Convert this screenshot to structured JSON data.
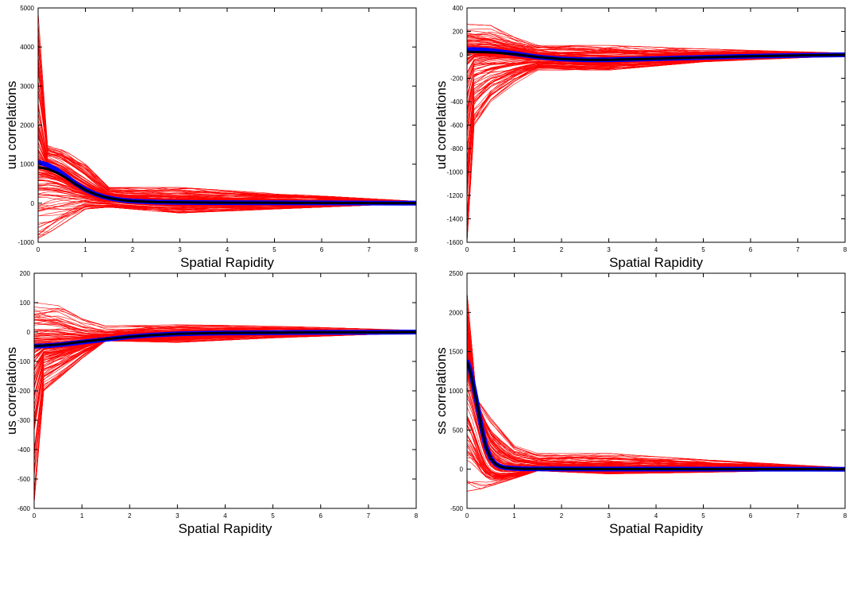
{
  "chart_data": [
    {
      "type": "line",
      "panel": "top-left",
      "xlabel": "Spatial Rapidity",
      "ylabel": "uu correlations",
      "xlim": [
        0,
        8
      ],
      "ylim": [
        -1000,
        5000
      ],
      "xticks": [
        "0",
        "1",
        "2",
        "3",
        "4",
        "5",
        "6",
        "7",
        "8"
      ],
      "yticks": [
        "-1000",
        "0",
        "1000",
        "2000",
        "3000",
        "4000",
        "5000"
      ],
      "grid": false,
      "series": [
        {
          "color": "#ff0000",
          "style": "ensemble of ~200 thin curves",
          "envelope_min": [
            [
              0,
              -900
            ],
            [
              0.3,
              -700
            ],
            [
              1.0,
              -150
            ],
            [
              1.5,
              -100
            ],
            [
              3.0,
              -250
            ],
            [
              5.0,
              -150
            ],
            [
              8.0,
              0
            ]
          ],
          "envelope_max": [
            [
              0,
              4900
            ],
            [
              0.2,
              1500
            ],
            [
              0.5,
              1400
            ],
            [
              1.0,
              1000
            ],
            [
              1.5,
              400
            ],
            [
              3.0,
              400
            ],
            [
              5.0,
              250
            ],
            [
              8.0,
              50
            ]
          ]
        },
        {
          "color": "#0000ff",
          "style": "thick band",
          "x": [
            0,
            0.2,
            0.4,
            0.6,
            0.8,
            1.0,
            1.2,
            1.4,
            1.6,
            1.8,
            2.0,
            2.5,
            3.0,
            4.0,
            5.0,
            6.0,
            7.0,
            8.0
          ],
          "y": [
            1050,
            980,
            850,
            680,
            500,
            350,
            240,
            160,
            110,
            75,
            55,
            30,
            20,
            15,
            10,
            8,
            5,
            0
          ]
        },
        {
          "color": "#000000",
          "style": "thick mean",
          "x": [
            0,
            0.2,
            0.4,
            0.6,
            0.8,
            1.0,
            1.2,
            1.4,
            1.6,
            1.8,
            2.0,
            2.5,
            3.0,
            4.0,
            5.0,
            6.0,
            7.0,
            8.0
          ],
          "y": [
            920,
            880,
            780,
            640,
            480,
            340,
            235,
            160,
            110,
            75,
            55,
            30,
            20,
            15,
            10,
            8,
            5,
            0
          ]
        }
      ]
    },
    {
      "type": "line",
      "panel": "top-right",
      "xlabel": "Spatial Rapidity",
      "ylabel": "ud correlations",
      "xlim": [
        0,
        8
      ],
      "ylim": [
        -1600,
        400
      ],
      "xticks": [
        "0",
        "1",
        "2",
        "3",
        "4",
        "5",
        "6",
        "7",
        "8"
      ],
      "yticks": [
        "-1600",
        "-1400",
        "-1200",
        "-1000",
        "-800",
        "-600",
        "-400",
        "-200",
        "0",
        "200",
        "400"
      ],
      "grid": false,
      "series": [
        {
          "color": "#ff0000",
          "style": "ensemble of ~200 thin curves",
          "envelope_min": [
            [
              0,
              -1600
            ],
            [
              0.15,
              -600
            ],
            [
              0.5,
              -400
            ],
            [
              1.0,
              -250
            ],
            [
              1.5,
              -130
            ],
            [
              3.0,
              -130
            ],
            [
              5.0,
              -60
            ],
            [
              8.0,
              -10
            ]
          ],
          "envelope_max": [
            [
              0,
              260
            ],
            [
              0.5,
              250
            ],
            [
              1.0,
              150
            ],
            [
              1.5,
              80
            ],
            [
              3.0,
              80
            ],
            [
              5.0,
              50
            ],
            [
              8.0,
              15
            ]
          ]
        },
        {
          "color": "#0000ff",
          "style": "thick band",
          "x": [
            0,
            0.2,
            0.4,
            0.6,
            0.8,
            1.0,
            1.5,
            2.0,
            2.5,
            3.0,
            4.0,
            5.0,
            6.0,
            7.0,
            8.0
          ],
          "y": [
            45,
            44,
            40,
            32,
            22,
            10,
            -18,
            -35,
            -42,
            -42,
            -33,
            -22,
            -12,
            -5,
            0
          ]
        },
        {
          "color": "#000000",
          "style": "thick mean",
          "x": [
            0,
            0.2,
            0.4,
            0.6,
            0.8,
            1.0,
            1.5,
            2.0,
            2.5,
            3.0,
            4.0,
            5.0,
            6.0,
            7.0,
            8.0
          ],
          "y": [
            25,
            24,
            22,
            18,
            12,
            5,
            -18,
            -35,
            -42,
            -42,
            -33,
            -22,
            -12,
            -5,
            0
          ]
        }
      ]
    },
    {
      "type": "line",
      "panel": "bottom-left",
      "xlabel": "Spatial Rapidity",
      "ylabel": "us correlations",
      "xlim": [
        0,
        8
      ],
      "ylim": [
        -600,
        200
      ],
      "xticks": [
        "0",
        "1",
        "2",
        "3",
        "4",
        "5",
        "6",
        "7",
        "8"
      ],
      "yticks": [
        "-600",
        "-500",
        "-400",
        "-300",
        "-200",
        "-100",
        "0",
        "100",
        "200"
      ],
      "grid": false,
      "series": [
        {
          "color": "#ff0000",
          "style": "ensemble of ~200 thin curves",
          "envelope_min": [
            [
              0,
              -580
            ],
            [
              0.2,
              -200
            ],
            [
              0.5,
              -160
            ],
            [
              1.0,
              -90
            ],
            [
              1.5,
              -30
            ],
            [
              3.0,
              -35
            ],
            [
              5.0,
              -20
            ],
            [
              8.0,
              -3
            ]
          ],
          "envelope_max": [
            [
              0,
              100
            ],
            [
              0.5,
              90
            ],
            [
              1.0,
              45
            ],
            [
              1.5,
              20
            ],
            [
              3.0,
              25
            ],
            [
              5.0,
              20
            ],
            [
              8.0,
              6
            ]
          ]
        },
        {
          "color": "#0000ff",
          "style": "thick band",
          "x": [
            0,
            0.2,
            0.4,
            0.6,
            0.8,
            1.0,
            1.5,
            2.0,
            2.5,
            3.0,
            3.5,
            4.0,
            5.0,
            6.0,
            7.0,
            8.0
          ],
          "y": [
            -48,
            -47,
            -45,
            -42,
            -38,
            -34,
            -25,
            -16,
            -10,
            -6,
            -4,
            -3,
            -2,
            -1,
            -1,
            0
          ]
        },
        {
          "color": "#000000",
          "style": "thick mean",
          "x": [
            0,
            0.2,
            0.4,
            0.6,
            0.8,
            1.0,
            1.5,
            2.0,
            2.5,
            3.0,
            3.5,
            4.0,
            5.0,
            6.0,
            7.0,
            8.0
          ],
          "y": [
            -48,
            -46,
            -44,
            -41,
            -37,
            -33,
            -24,
            -16,
            -10,
            -6,
            -4,
            -3,
            -2,
            -1,
            -1,
            0
          ]
        }
      ]
    },
    {
      "type": "line",
      "panel": "bottom-right",
      "xlabel": "Spatial Rapidity",
      "ylabel": "ss correlations",
      "xlim": [
        0,
        8
      ],
      "ylim": [
        -500,
        2500
      ],
      "xticks": [
        "0",
        "1",
        "2",
        "3",
        "4",
        "5",
        "6",
        "7",
        "8"
      ],
      "yticks": [
        "-500",
        "0",
        "500",
        "1000",
        "1500",
        "2000",
        "2500"
      ],
      "grid": false,
      "series": [
        {
          "color": "#ff0000",
          "style": "ensemble of ~200 thin curves",
          "envelope_min": [
            [
              0,
              -280
            ],
            [
              0.3,
              -250
            ],
            [
              1.0,
              -120
            ],
            [
              1.5,
              -20
            ],
            [
              3.0,
              -60
            ],
            [
              5.0,
              -40
            ],
            [
              8.0,
              -5
            ]
          ],
          "envelope_max": [
            [
              0,
              2250
            ],
            [
              0.2,
              900
            ],
            [
              0.5,
              650
            ],
            [
              1.0,
              300
            ],
            [
              1.5,
              200
            ],
            [
              3.0,
              200
            ],
            [
              5.0,
              120
            ],
            [
              8.0,
              20
            ]
          ]
        },
        {
          "color": "#0000ff",
          "style": "thick band",
          "x": [
            0,
            0.05,
            0.1,
            0.2,
            0.3,
            0.4,
            0.5,
            0.6,
            0.7,
            0.8,
            1.0,
            1.2,
            1.5,
            2.0,
            3.0,
            4.0,
            5.0,
            6.0,
            7.0,
            8.0
          ],
          "y": [
            1390,
            1300,
            1180,
            880,
            550,
            290,
            140,
            70,
            35,
            20,
            10,
            6,
            4,
            3,
            2,
            2,
            1,
            1,
            1,
            0
          ]
        },
        {
          "color": "#000000",
          "style": "thick mean",
          "x": [
            0,
            0.05,
            0.1,
            0.2,
            0.3,
            0.4,
            0.5,
            0.6,
            0.7,
            0.8,
            1.0,
            1.2,
            1.5,
            2.0,
            3.0,
            4.0,
            5.0,
            6.0,
            7.0,
            8.0
          ],
          "y": [
            1370,
            1280,
            1160,
            870,
            540,
            285,
            138,
            68,
            34,
            19,
            10,
            6,
            4,
            3,
            2,
            2,
            1,
            1,
            1,
            0
          ]
        }
      ]
    }
  ]
}
